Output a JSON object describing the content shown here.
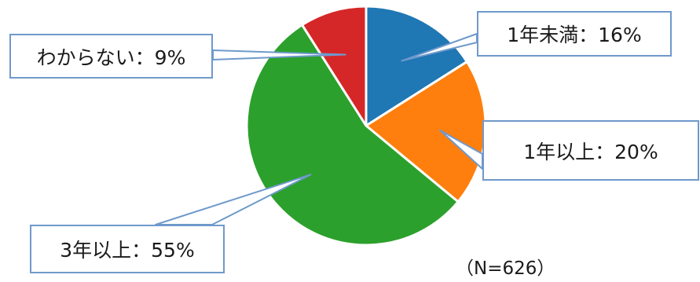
{
  "chart_data": {
    "type": "pie",
    "slices": [
      {
        "label": "1年未満",
        "value": 16,
        "color": "#1f77b4"
      },
      {
        "label": "1年以上",
        "value": 20,
        "color": "#ff7f0e"
      },
      {
        "label": "3年以上",
        "value": 55,
        "color": "#2ca02c"
      },
      {
        "label": "わからない",
        "value": 9,
        "color": "#d62728"
      }
    ],
    "data_labels": [
      "1年未満：16%",
      "1年以上：20%",
      "3年以上：55%",
      "わからない：9%"
    ],
    "annotation": "（N=626）",
    "start_angle": "12 o'clock",
    "direction": "clockwise",
    "legend": "none"
  }
}
